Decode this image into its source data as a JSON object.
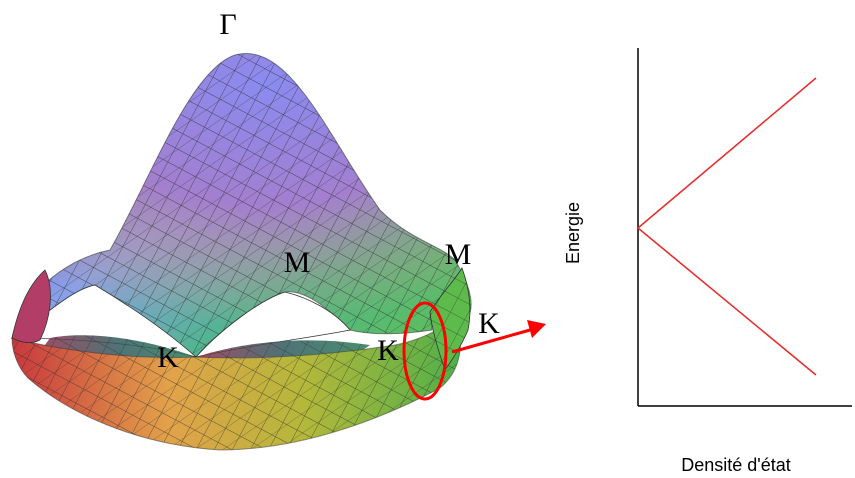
{
  "points": {
    "gamma": "Γ",
    "m_center": "M",
    "m_right": "M",
    "k_left": "K",
    "k_center": "K",
    "k_right": "K"
  },
  "dos_plot": {
    "ylabel": "Energie",
    "xlabel": "Densité d'état"
  },
  "colors": {
    "dirac_lines": "#e53030",
    "highlight": "#ff0000",
    "arrow": "#ff0000",
    "axes": "#000000",
    "mesh": "#2a2a2a"
  }
}
